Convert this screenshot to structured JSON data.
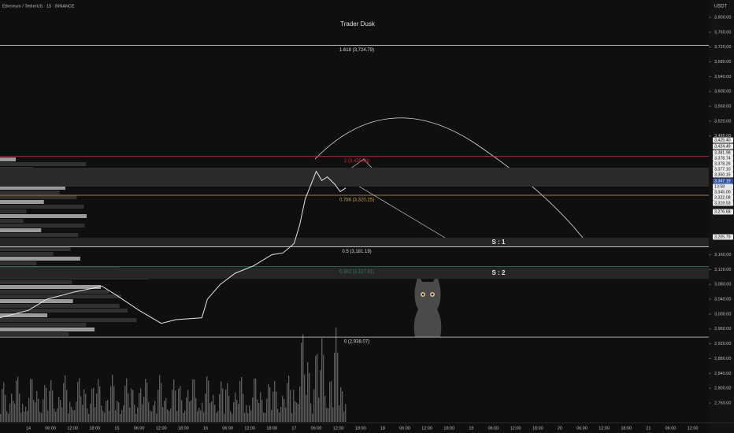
{
  "header": {
    "symbol": "Ethereum / TetherUS · 15 · BINANCE",
    "watermark": "Trader Dusk",
    "currency": "USDT"
  },
  "price_axis": {
    "range": [
      2760,
      3800
    ],
    "ticks": [
      {
        "value": 3800,
        "label": "3,800.00"
      },
      {
        "value": 3760,
        "label": "3,760.00"
      },
      {
        "value": 3720,
        "label": "3,720.00"
      },
      {
        "value": 3680,
        "label": "3,680.00"
      },
      {
        "value": 3640,
        "label": "3,640.00"
      },
      {
        "value": 3600,
        "label": "3,600.00"
      },
      {
        "value": 3560,
        "label": "3,560.00"
      },
      {
        "value": 3520,
        "label": "3,520.00"
      },
      {
        "value": 3480,
        "label": "3,480.00"
      },
      {
        "value": 3160,
        "label": "3,160.00"
      },
      {
        "value": 3120,
        "label": "3,120.00"
      },
      {
        "value": 3080,
        "label": "3,080.00"
      },
      {
        "value": 3040,
        "label": "3,040.00"
      },
      {
        "value": 3000,
        "label": "3,000.00"
      },
      {
        "value": 2960,
        "label": "2,960.00"
      },
      {
        "value": 2920,
        "label": "2,920.00"
      },
      {
        "value": 2880,
        "label": "2,880.00"
      },
      {
        "value": 2840,
        "label": "2,840.00"
      },
      {
        "value": 2800,
        "label": "2,800.00"
      },
      {
        "value": 2760,
        "label": "2,760.00"
      }
    ]
  },
  "price_tags": [
    "3,425.40",
    "3,424.49",
    "3,381.98",
    "3,378.74",
    "3,378.26",
    "3,377.10",
    "3,350.15",
    "3,347.19",
    "13:58",
    "3,345.00",
    "3,322.08",
    "3,319.53",
    "3,276.68",
    "3,205.79"
  ],
  "time_axis": [
    "14",
    "06:00",
    "12:00",
    "18:00",
    "15",
    "06:00",
    "12:00",
    "18:00",
    "16",
    "06:00",
    "12:00",
    "18:00",
    "17",
    "06:00",
    "12:00",
    "18:00",
    "18",
    "06:00",
    "12:00",
    "18:00",
    "19",
    "06:00",
    "12:00",
    "18:00",
    "20",
    "06:00",
    "12:00",
    "18:00",
    "21",
    "06:00",
    "12:00"
  ],
  "price_line": {
    "hours": [
      -7.7,
      0,
      5,
      12.6,
      20,
      24,
      30,
      36,
      40,
      47,
      48.5,
      52,
      56,
      61,
      66,
      69,
      72,
      73.5,
      75,
      77,
      78,
      79.5,
      81,
      83,
      84.5,
      86
    ],
    "close": [
      2990,
      3010,
      3040,
      3060,
      3075,
      3050,
      3010,
      2975,
      2985,
      2990,
      3040,
      3080,
      3110,
      3130,
      3160,
      3165,
      3190,
      3240,
      3310,
      3360,
      3385,
      3360,
      3370,
      3350,
      3330,
      3340
    ]
  },
  "fib_levels": [
    {
      "value": 3724.79,
      "label": "1.618 (3,724.79)",
      "color": "#d9d9d9"
    },
    {
      "value": 3425.4,
      "label": "1 (3,425.40)",
      "color": "#c0303a"
    },
    {
      "value": 3320.25,
      "label": "0.786 (3,320.25)",
      "color": "#c9a640"
    },
    {
      "value": 3181.19,
      "label": "0.5 (3,181.19)",
      "color": "#d9d9d9"
    },
    {
      "value": 3127.81,
      "label": "0.382 (3,127.81)",
      "color": "#2e7d5b"
    },
    {
      "value": 2938.07,
      "label": "0 (2,938.07)",
      "color": "#d9d9d9"
    }
  ],
  "zones": [
    {
      "from": 3205.79,
      "to": 3181.19,
      "label": "S : 1"
    },
    {
      "from": 3125,
      "to": 3095,
      "label": "S : 2"
    }
  ]
}
